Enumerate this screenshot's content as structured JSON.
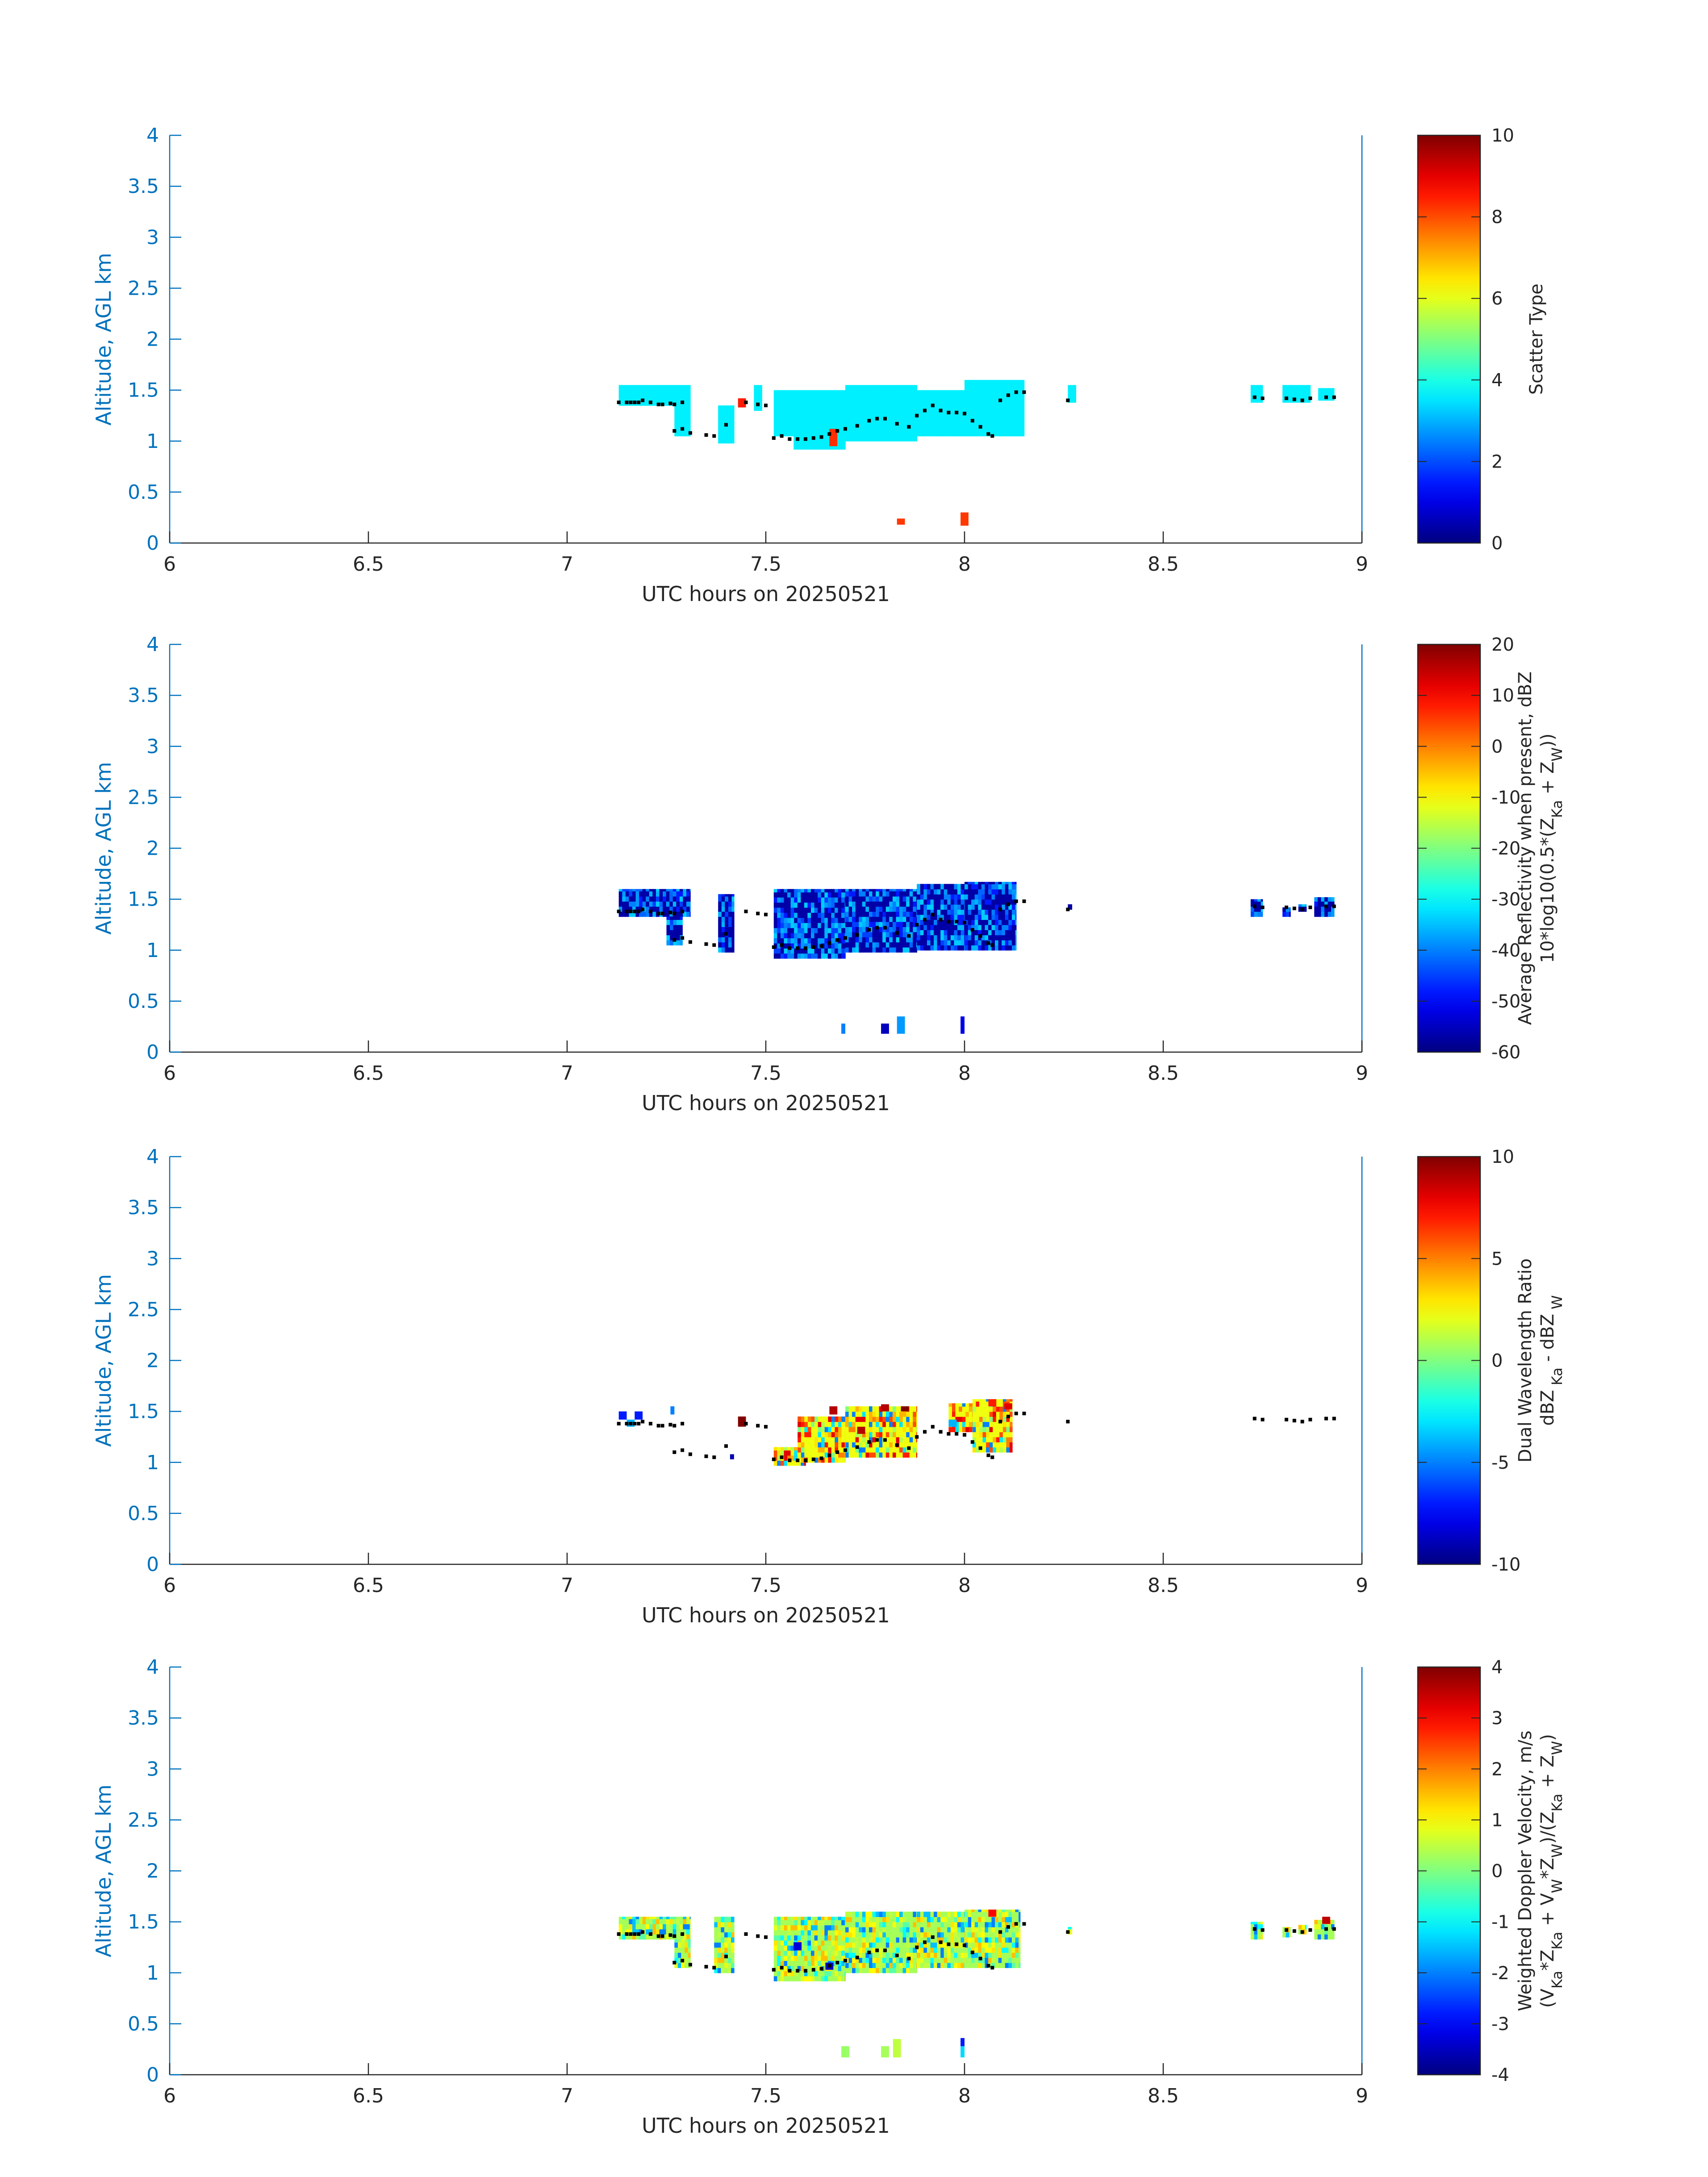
{
  "chart_data": [
    {
      "type": "heatmap",
      "xlabel": "UTC hours on 20250521",
      "ylabel": "Altitude, AGL km",
      "xlim": [
        6,
        9
      ],
      "ylim": [
        0,
        4
      ],
      "xticks": [
        6,
        6.5,
        7,
        7.5,
        8,
        8.5,
        9
      ],
      "yticks": [
        0,
        0.5,
        1,
        1.5,
        2,
        2.5,
        3,
        3.5,
        4
      ],
      "colorbar": {
        "label_lines": [
          "Scatter Type"
        ],
        "range": [
          0,
          10
        ],
        "ticks": [
          0,
          2,
          4,
          6,
          8,
          10
        ],
        "colormap": "jet"
      },
      "base_value": 3.6,
      "base_cells": [
        [
          7.13,
          7.31,
          1.35,
          1.55
        ],
        [
          7.27,
          7.31,
          1.05,
          1.35
        ],
        [
          7.38,
          7.42,
          0.98,
          1.35
        ],
        [
          7.47,
          7.49,
          1.3,
          1.55
        ],
        [
          7.52,
          7.57,
          1.05,
          1.5
        ],
        [
          7.57,
          7.7,
          0.92,
          1.5
        ],
        [
          7.7,
          7.88,
          1.0,
          1.55
        ],
        [
          7.88,
          8.0,
          1.05,
          1.5
        ],
        [
          8.0,
          8.15,
          1.05,
          1.6
        ],
        [
          8.26,
          8.28,
          1.38,
          1.55
        ],
        [
          8.72,
          8.75,
          1.38,
          1.55
        ],
        [
          8.8,
          8.87,
          1.38,
          1.55
        ],
        [
          8.89,
          8.93,
          1.4,
          1.52
        ]
      ],
      "special_cells": [
        {
          "x": [
            7.43,
            7.45
          ],
          "y": [
            1.33,
            1.42
          ],
          "value": 8.5
        },
        {
          "x": [
            7.66,
            7.68
          ],
          "y": [
            0.95,
            1.12
          ],
          "value": 8.3
        },
        {
          "x": [
            7.83,
            7.85
          ],
          "y": [
            0.18,
            0.24
          ],
          "value": 8.2
        },
        {
          "x": [
            7.99,
            8.01
          ],
          "y": [
            0.17,
            0.3
          ],
          "value": 8.2
        }
      ],
      "lower_cells": [],
      "speckle_values": [],
      "speckle_density": 0
    },
    {
      "type": "heatmap",
      "xlabel": "UTC hours on 20250521",
      "ylabel": "Altitude, AGL km",
      "xlim": [
        6,
        9
      ],
      "ylim": [
        0,
        4
      ],
      "xticks": [
        6,
        6.5,
        7,
        7.5,
        8,
        8.5,
        9
      ],
      "yticks": [
        0,
        0.5,
        1,
        1.5,
        2,
        2.5,
        3,
        3.5,
        4
      ],
      "colorbar": {
        "label_lines": [
          "Average Reflectivity when present, dBZ",
          "10*log10(0.5*(Z_{Ka} + Z_{W}))"
        ],
        "range": [
          -60,
          20
        ],
        "ticks": [
          -60,
          -50,
          -40,
          -30,
          -20,
          -10,
          0,
          10,
          20
        ],
        "colormap": "jet"
      },
      "base_value": -57,
      "base_cells": [
        [
          7.13,
          7.31,
          1.33,
          1.6
        ],
        [
          7.25,
          7.29,
          1.05,
          1.33
        ],
        [
          7.38,
          7.42,
          0.98,
          1.55
        ],
        [
          7.52,
          7.7,
          0.92,
          1.6
        ],
        [
          7.7,
          7.88,
          0.98,
          1.6
        ],
        [
          7.88,
          8.0,
          1.0,
          1.65
        ],
        [
          8.0,
          8.13,
          1.0,
          1.67
        ],
        [
          8.26,
          8.27,
          1.4,
          1.45
        ],
        [
          8.72,
          8.75,
          1.33,
          1.5
        ],
        [
          8.8,
          8.82,
          1.33,
          1.42
        ],
        [
          8.84,
          8.86,
          1.38,
          1.45
        ],
        [
          8.88,
          8.93,
          1.33,
          1.52
        ]
      ],
      "special_cells": [
        {
          "x": [
            7.69,
            7.7
          ],
          "y": [
            0.18,
            0.28
          ],
          "value": -40
        },
        {
          "x": [
            7.79,
            7.81
          ],
          "y": [
            0.18,
            0.28
          ],
          "value": -55
        },
        {
          "x": [
            7.83,
            7.85
          ],
          "y": [
            0.18,
            0.35
          ],
          "value": -38
        },
        {
          "x": [
            7.99,
            8.0
          ],
          "y": [
            0.18,
            0.35
          ],
          "value": -52
        }
      ],
      "lower_cells": [],
      "speckle_values": [
        -48,
        -45,
        -42,
        -40,
        -38,
        -36,
        -34
      ],
      "speckle_density": 0.55
    },
    {
      "type": "heatmap",
      "xlabel": "UTC hours on 20250521",
      "ylabel": "Altitude, AGL km",
      "xlim": [
        6,
        9
      ],
      "ylim": [
        0,
        4
      ],
      "xticks": [
        6,
        6.5,
        7,
        7.5,
        8,
        8.5,
        9
      ],
      "yticks": [
        0,
        0.5,
        1,
        1.5,
        2,
        2.5,
        3,
        3.5,
        4
      ],
      "colorbar": {
        "label_lines": [
          "Dual Wavelength Ratio",
          "dBZ_{ Ka} - dBZ_{ W}"
        ],
        "range": [
          -10,
          10
        ],
        "ticks": [
          -10,
          -5,
          0,
          5,
          10
        ],
        "colormap": "jet"
      },
      "base_value": 2.2,
      "base_cells": [
        [
          7.52,
          7.6,
          0.97,
          1.15
        ],
        [
          7.58,
          7.7,
          1.0,
          1.45
        ],
        [
          7.7,
          7.88,
          1.05,
          1.55
        ],
        [
          7.96,
          8.02,
          1.3,
          1.58
        ],
        [
          8.02,
          8.12,
          1.1,
          1.62
        ]
      ],
      "special_cells": [
        {
          "x": [
            7.13,
            7.15
          ],
          "y": [
            1.42,
            1.5
          ],
          "value": -7
        },
        {
          "x": [
            7.17,
            7.19
          ],
          "y": [
            1.42,
            1.5
          ],
          "value": -7
        },
        {
          "x": [
            7.15,
            7.17
          ],
          "y": [
            1.35,
            1.42
          ],
          "value": -4
        },
        {
          "x": [
            7.26,
            7.27
          ],
          "y": [
            1.47,
            1.55
          ],
          "value": -5
        },
        {
          "x": [
            7.41,
            7.42
          ],
          "y": [
            1.03,
            1.08
          ],
          "value": -9
        },
        {
          "x": [
            7.43,
            7.45
          ],
          "y": [
            1.35,
            1.45
          ],
          "value": 10
        },
        {
          "x": [
            7.66,
            7.68
          ],
          "y": [
            1.47,
            1.55
          ],
          "value": 9
        },
        {
          "x": [
            7.73,
            7.75
          ],
          "y": [
            1.28,
            1.35
          ],
          "value": 9
        },
        {
          "x": [
            7.79,
            7.81
          ],
          "y": [
            1.5,
            1.57
          ],
          "value": 9
        },
        {
          "x": [
            7.84,
            7.86
          ],
          "y": [
            1.5,
            1.55
          ],
          "value": 10
        },
        {
          "x": [
            8.06,
            8.08
          ],
          "y": [
            1.55,
            1.62
          ],
          "value": 7
        },
        {
          "x": [
            7.96,
            7.98
          ],
          "y": [
            1.35,
            1.42
          ],
          "value": -4
        },
        {
          "x": [
            8.1,
            8.12
          ],
          "y": [
            1.52,
            1.58
          ],
          "value": 8
        }
      ],
      "lower_cells": [],
      "speckle_values": [
        0,
        1,
        3,
        4,
        5,
        6,
        7,
        8,
        -3,
        -5
      ],
      "speckle_density": 0.55
    },
    {
      "type": "heatmap",
      "xlabel": "UTC hours on 20250521",
      "ylabel": "Altitude, AGL km",
      "xlim": [
        6,
        9
      ],
      "ylim": [
        0,
        4
      ],
      "xticks": [
        6,
        6.5,
        7,
        7.5,
        8,
        8.5,
        9
      ],
      "yticks": [
        0,
        0.5,
        1,
        1.5,
        2,
        2.5,
        3,
        3.5,
        4
      ],
      "colorbar": {
        "label_lines": [
          "Weighted Doppler Velocity, m/s",
          "(V_{Ka}*Z_{Ka} + V_{W}*Z_{W})/(Z_{Ka} + Z_{W})"
        ],
        "range": [
          -4,
          4
        ],
        "ticks": [
          -4,
          -3,
          -2,
          -1,
          0,
          1,
          2,
          3,
          4
        ],
        "colormap": "jet"
      },
      "base_value": 0.3,
      "base_cells": [
        [
          7.13,
          7.31,
          1.33,
          1.55
        ],
        [
          7.27,
          7.31,
          1.05,
          1.33
        ],
        [
          7.37,
          7.42,
          1.0,
          1.55
        ],
        [
          7.52,
          7.7,
          0.92,
          1.55
        ],
        [
          7.7,
          7.88,
          1.0,
          1.6
        ],
        [
          7.88,
          8.0,
          1.05,
          1.6
        ],
        [
          8.0,
          8.14,
          1.05,
          1.62
        ],
        [
          8.26,
          8.27,
          1.38,
          1.45
        ],
        [
          8.72,
          8.75,
          1.33,
          1.5
        ],
        [
          8.8,
          8.82,
          1.35,
          1.45
        ],
        [
          8.84,
          8.86,
          1.38,
          1.47
        ],
        [
          8.88,
          8.93,
          1.33,
          1.52
        ]
      ],
      "special_cells": [
        {
          "x": [
            7.69,
            7.71
          ],
          "y": [
            0.17,
            0.28
          ],
          "value": 0.2
        },
        {
          "x": [
            7.79,
            7.81
          ],
          "y": [
            0.17,
            0.28
          ],
          "value": 0.3
        },
        {
          "x": [
            7.82,
            7.84
          ],
          "y": [
            0.17,
            0.35
          ],
          "value": 0.5
        },
        {
          "x": [
            7.99,
            8.0
          ],
          "y": [
            0.17,
            0.28
          ],
          "value": -1.3
        },
        {
          "x": [
            7.99,
            8.0
          ],
          "y": [
            0.28,
            0.36
          ],
          "value": -2.8
        },
        {
          "x": [
            7.65,
            7.67
          ],
          "y": [
            1.03,
            1.1
          ],
          "value": -3.5
        },
        {
          "x": [
            7.57,
            7.59
          ],
          "y": [
            1.22,
            1.3
          ],
          "value": -3.3
        },
        {
          "x": [
            8.9,
            8.92
          ],
          "y": [
            1.48,
            1.55
          ],
          "value": 3.5
        },
        {
          "x": [
            8.06,
            8.08
          ],
          "y": [
            1.55,
            1.62
          ],
          "value": 3.0
        }
      ],
      "lower_cells": [],
      "speckle_values": [
        -0.3,
        0.5,
        0.8,
        1.0,
        1.2,
        -1.0,
        -1.5,
        -2.0,
        1.5
      ],
      "speckle_density": 0.6
    }
  ],
  "dots": [
    [
      7.13,
      1.38
    ],
    [
      7.15,
      1.38
    ],
    [
      7.16,
      1.38
    ],
    [
      7.17,
      1.38
    ],
    [
      7.18,
      1.38
    ],
    [
      7.19,
      1.4
    ],
    [
      7.21,
      1.38
    ],
    [
      7.23,
      1.36
    ],
    [
      7.24,
      1.36
    ],
    [
      7.26,
      1.37
    ],
    [
      7.27,
      1.36
    ],
    [
      7.29,
      1.38
    ],
    [
      7.27,
      1.1
    ],
    [
      7.29,
      1.12
    ],
    [
      7.31,
      1.08
    ],
    [
      7.35,
      1.06
    ],
    [
      7.37,
      1.05
    ],
    [
      7.4,
      1.16
    ],
    [
      7.45,
      1.38
    ],
    [
      7.48,
      1.36
    ],
    [
      7.5,
      1.35
    ],
    [
      7.52,
      1.03
    ],
    [
      7.54,
      1.05
    ],
    [
      7.56,
      1.02
    ],
    [
      7.58,
      1.02
    ],
    [
      7.6,
      1.02
    ],
    [
      7.62,
      1.03
    ],
    [
      7.64,
      1.04
    ],
    [
      7.66,
      1.07
    ],
    [
      7.68,
      1.1
    ],
    [
      7.7,
      1.12
    ],
    [
      7.73,
      1.15
    ],
    [
      7.76,
      1.2
    ],
    [
      7.78,
      1.22
    ],
    [
      7.8,
      1.22
    ],
    [
      7.83,
      1.17
    ],
    [
      7.86,
      1.14
    ],
    [
      7.88,
      1.25
    ],
    [
      7.9,
      1.3
    ],
    [
      7.92,
      1.35
    ],
    [
      7.94,
      1.3
    ],
    [
      7.96,
      1.28
    ],
    [
      7.98,
      1.28
    ],
    [
      8.0,
      1.27
    ],
    [
      8.02,
      1.2
    ],
    [
      8.04,
      1.14
    ],
    [
      8.06,
      1.07
    ],
    [
      8.07,
      1.05
    ],
    [
      8.09,
      1.4
    ],
    [
      8.11,
      1.45
    ],
    [
      8.13,
      1.48
    ],
    [
      8.15,
      1.48
    ],
    [
      8.26,
      1.4
    ],
    [
      8.73,
      1.43
    ],
    [
      8.75,
      1.42
    ],
    [
      8.81,
      1.42
    ],
    [
      8.83,
      1.41
    ],
    [
      8.85,
      1.4
    ],
    [
      8.87,
      1.42
    ],
    [
      8.91,
      1.43
    ],
    [
      8.93,
      1.43
    ]
  ]
}
